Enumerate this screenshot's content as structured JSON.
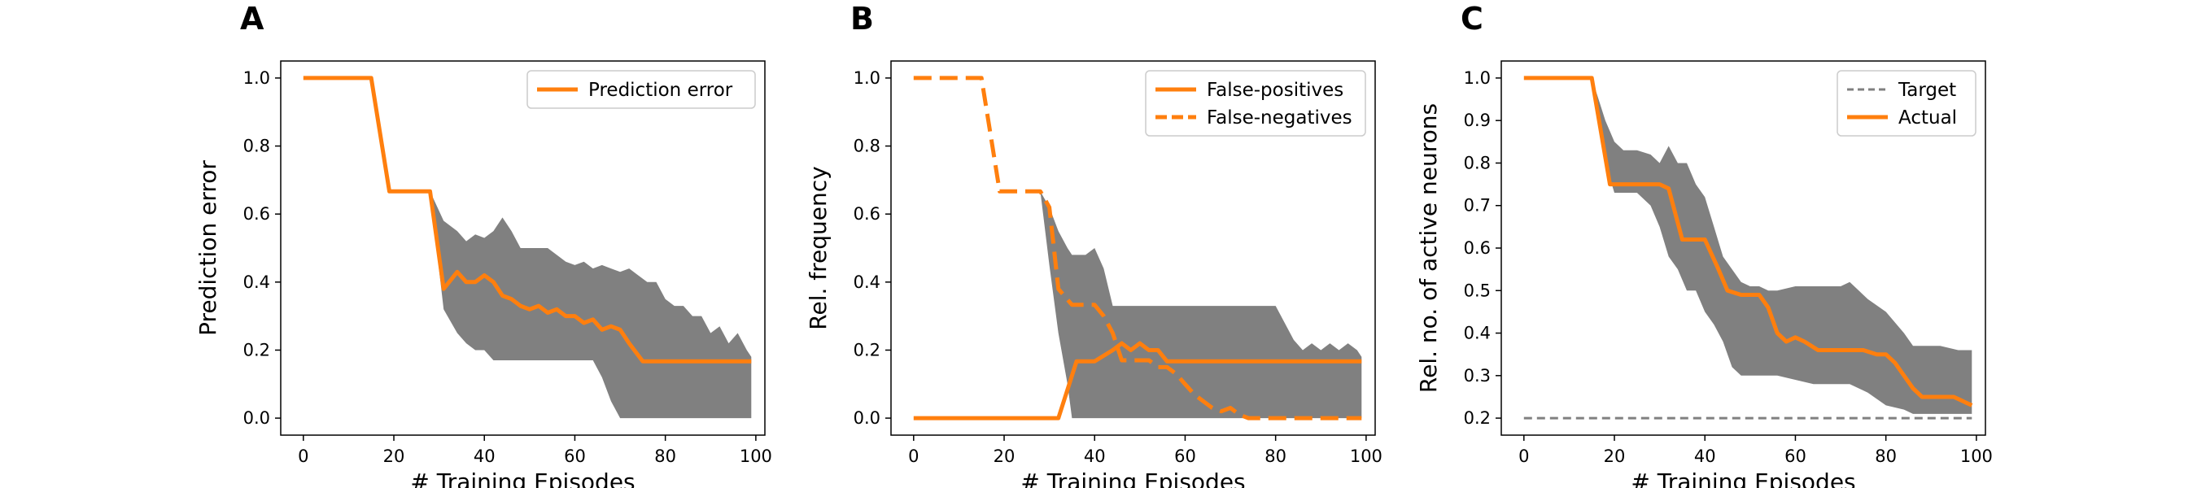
{
  "chart_data": [
    {
      "type": "line",
      "panel_label": "A",
      "xlabel": "# Training Episodes",
      "ylabel": "Prediction error",
      "xlim": [
        -5,
        102
      ],
      "ylim": [
        -0.05,
        1.05
      ],
      "xticks": [
        0,
        20,
        40,
        60,
        80,
        100
      ],
      "yticks": [
        0.0,
        0.2,
        0.4,
        0.6,
        0.8,
        1.0
      ],
      "ytick_labels": [
        "0.0",
        "0.2",
        "0.4",
        "0.6",
        "0.8",
        "1.0"
      ],
      "xtick_labels": [
        "0",
        "20",
        "40",
        "60",
        "80",
        "100"
      ],
      "legend_position": "top-right",
      "grid": false,
      "series": [
        {
          "name": "Prediction error",
          "color": "#ff7f0e",
          "style": "solid",
          "x": [
            0,
            15,
            19,
            28,
            31,
            34,
            36,
            38,
            40,
            42,
            44,
            46,
            48,
            50,
            52,
            54,
            56,
            58,
            60,
            62,
            64,
            66,
            68,
            70,
            72,
            75,
            80,
            85,
            90,
            95,
            99
          ],
          "y": [
            1.0,
            1.0,
            0.667,
            0.667,
            0.38,
            0.43,
            0.4,
            0.4,
            0.42,
            0.4,
            0.36,
            0.35,
            0.33,
            0.32,
            0.33,
            0.31,
            0.32,
            0.3,
            0.3,
            0.28,
            0.29,
            0.26,
            0.27,
            0.26,
            0.22,
            0.167,
            0.167,
            0.167,
            0.167,
            0.167,
            0.167
          ]
        }
      ],
      "band": {
        "color": "#808080",
        "x": [
          28,
          31,
          34,
          36,
          38,
          40,
          42,
          44,
          46,
          48,
          50,
          52,
          54,
          56,
          58,
          60,
          62,
          64,
          66,
          68,
          70,
          72,
          74,
          76,
          78,
          80,
          82,
          84,
          86,
          88,
          90,
          92,
          94,
          96,
          98,
          99
        ],
        "upper": [
          0.667,
          0.58,
          0.55,
          0.52,
          0.54,
          0.53,
          0.55,
          0.59,
          0.55,
          0.5,
          0.5,
          0.5,
          0.5,
          0.48,
          0.46,
          0.45,
          0.46,
          0.44,
          0.45,
          0.44,
          0.43,
          0.44,
          0.42,
          0.4,
          0.4,
          0.35,
          0.33,
          0.33,
          0.3,
          0.3,
          0.25,
          0.27,
          0.22,
          0.25,
          0.2,
          0.18
        ],
        "lower": [
          0.667,
          0.32,
          0.25,
          0.22,
          0.2,
          0.2,
          0.17,
          0.17,
          0.17,
          0.17,
          0.17,
          0.17,
          0.17,
          0.17,
          0.17,
          0.17,
          0.17,
          0.17,
          0.12,
          0.05,
          0.0,
          0.0,
          0.0,
          0.0,
          0.0,
          0.0,
          0.0,
          0.0,
          0.0,
          0.0,
          0.0,
          0.0,
          0.0,
          0.0,
          0.0,
          0.0
        ]
      }
    },
    {
      "type": "line",
      "panel_label": "B",
      "xlabel": "# Training Episodes",
      "ylabel": "Rel. frequency",
      "xlim": [
        -5,
        102
      ],
      "ylim": [
        -0.05,
        1.05
      ],
      "xticks": [
        0,
        20,
        40,
        60,
        80,
        100
      ],
      "yticks": [
        0.0,
        0.2,
        0.4,
        0.6,
        0.8,
        1.0
      ],
      "ytick_labels": [
        "0.0",
        "0.2",
        "0.4",
        "0.6",
        "0.8",
        "1.0"
      ],
      "xtick_labels": [
        "0",
        "20",
        "40",
        "60",
        "80",
        "100"
      ],
      "legend_position": "top-right",
      "grid": false,
      "series": [
        {
          "name": "False-positives",
          "color": "#ff7f0e",
          "style": "solid",
          "x": [
            0,
            10,
            20,
            30,
            32,
            36,
            40,
            44,
            46,
            48,
            50,
            52,
            54,
            56,
            60,
            70,
            80,
            90,
            99
          ],
          "y": [
            0.0,
            0.0,
            0.0,
            0.0,
            0.0,
            0.167,
            0.167,
            0.2,
            0.22,
            0.2,
            0.22,
            0.2,
            0.2,
            0.167,
            0.167,
            0.167,
            0.167,
            0.167,
            0.167
          ]
        },
        {
          "name": "False-negatives",
          "color": "#ff7f0e",
          "style": "dashed",
          "x": [
            0,
            15,
            19,
            28,
            30,
            31,
            32,
            35,
            38,
            40,
            42,
            44,
            46,
            48,
            50,
            52,
            54,
            56,
            58,
            60,
            62,
            64,
            66,
            68,
            70,
            72,
            74,
            76,
            80,
            90,
            99
          ],
          "y": [
            1.0,
            1.0,
            0.667,
            0.667,
            0.62,
            0.5,
            0.38,
            0.333,
            0.333,
            0.333,
            0.3,
            0.25,
            0.17,
            0.17,
            0.17,
            0.17,
            0.15,
            0.15,
            0.13,
            0.1,
            0.07,
            0.05,
            0.03,
            0.02,
            0.03,
            0.01,
            0.0,
            0.0,
            0.0,
            0.0,
            0.0
          ]
        }
      ],
      "band": {
        "color": "#808080",
        "x": [
          28,
          30,
          32,
          34,
          35,
          38,
          40,
          42,
          44,
          46,
          48,
          50,
          54,
          58,
          62,
          66,
          70,
          74,
          78,
          80,
          82,
          84,
          86,
          88,
          90,
          92,
          94,
          96,
          98,
          99
        ],
        "upper": [
          0.667,
          0.62,
          0.55,
          0.5,
          0.48,
          0.48,
          0.5,
          0.44,
          0.33,
          0.33,
          0.33,
          0.33,
          0.33,
          0.33,
          0.33,
          0.33,
          0.33,
          0.33,
          0.33,
          0.33,
          0.28,
          0.23,
          0.2,
          0.22,
          0.2,
          0.22,
          0.2,
          0.22,
          0.2,
          0.18
        ],
        "lower": [
          0.667,
          0.45,
          0.25,
          0.1,
          0.0,
          0.0,
          0.0,
          0.0,
          0.0,
          0.0,
          0.0,
          0.0,
          0.0,
          0.0,
          0.0,
          0.0,
          0.0,
          0.0,
          0.0,
          0.0,
          0.0,
          0.0,
          0.0,
          0.0,
          0.0,
          0.0,
          0.0,
          0.0,
          0.0,
          0.0
        ]
      }
    },
    {
      "type": "line",
      "panel_label": "C",
      "xlabel": "# Training Episodes",
      "ylabel": "Rel. no. of active neurons",
      "xlim": [
        -5,
        102
      ],
      "ylim": [
        0.16,
        1.04
      ],
      "xticks": [
        0,
        20,
        40,
        60,
        80,
        100
      ],
      "yticks": [
        0.2,
        0.3,
        0.4,
        0.5,
        0.6,
        0.7,
        0.8,
        0.9,
        1.0
      ],
      "ytick_labels": [
        "0.2",
        "0.3",
        "0.4",
        "0.5",
        "0.6",
        "0.7",
        "0.8",
        "0.9",
        "1.0"
      ],
      "xtick_labels": [
        "0",
        "20",
        "40",
        "60",
        "80",
        "100"
      ],
      "legend_position": "top-right",
      "grid": false,
      "series": [
        {
          "name": "Target",
          "color": "#808080",
          "style": "dashed",
          "x": [
            0,
            99
          ],
          "y": [
            0.2,
            0.2
          ]
        },
        {
          "name": "Actual",
          "color": "#ff7f0e",
          "style": "solid",
          "x": [
            0,
            15,
            19,
            25,
            30,
            32,
            35,
            40,
            43,
            45,
            48,
            52,
            54,
            56,
            58,
            60,
            62,
            65,
            70,
            75,
            78,
            80,
            82,
            84,
            86,
            88,
            90,
            95,
            99
          ],
          "y": [
            1.0,
            1.0,
            0.75,
            0.75,
            0.75,
            0.74,
            0.62,
            0.62,
            0.55,
            0.5,
            0.49,
            0.49,
            0.46,
            0.4,
            0.38,
            0.39,
            0.38,
            0.36,
            0.36,
            0.36,
            0.35,
            0.35,
            0.33,
            0.3,
            0.27,
            0.25,
            0.25,
            0.25,
            0.23
          ]
        }
      ],
      "band": {
        "color": "#808080",
        "x": [
          15,
          18,
          20,
          22,
          25,
          28,
          30,
          32,
          34,
          36,
          38,
          40,
          42,
          44,
          46,
          48,
          50,
          52,
          54,
          56,
          60,
          64,
          68,
          70,
          72,
          76,
          80,
          84,
          86,
          88,
          92,
          96,
          99
        ],
        "upper": [
          1.0,
          0.9,
          0.85,
          0.83,
          0.83,
          0.82,
          0.8,
          0.84,
          0.8,
          0.8,
          0.75,
          0.72,
          0.65,
          0.58,
          0.55,
          0.52,
          0.51,
          0.51,
          0.5,
          0.5,
          0.51,
          0.51,
          0.51,
          0.51,
          0.52,
          0.48,
          0.45,
          0.4,
          0.37,
          0.37,
          0.37,
          0.36,
          0.36
        ],
        "lower": [
          1.0,
          0.8,
          0.73,
          0.73,
          0.73,
          0.7,
          0.65,
          0.58,
          0.55,
          0.5,
          0.5,
          0.45,
          0.42,
          0.38,
          0.32,
          0.3,
          0.3,
          0.3,
          0.3,
          0.3,
          0.29,
          0.28,
          0.28,
          0.28,
          0.28,
          0.26,
          0.23,
          0.22,
          0.21,
          0.21,
          0.21,
          0.21,
          0.21
        ]
      }
    }
  ]
}
